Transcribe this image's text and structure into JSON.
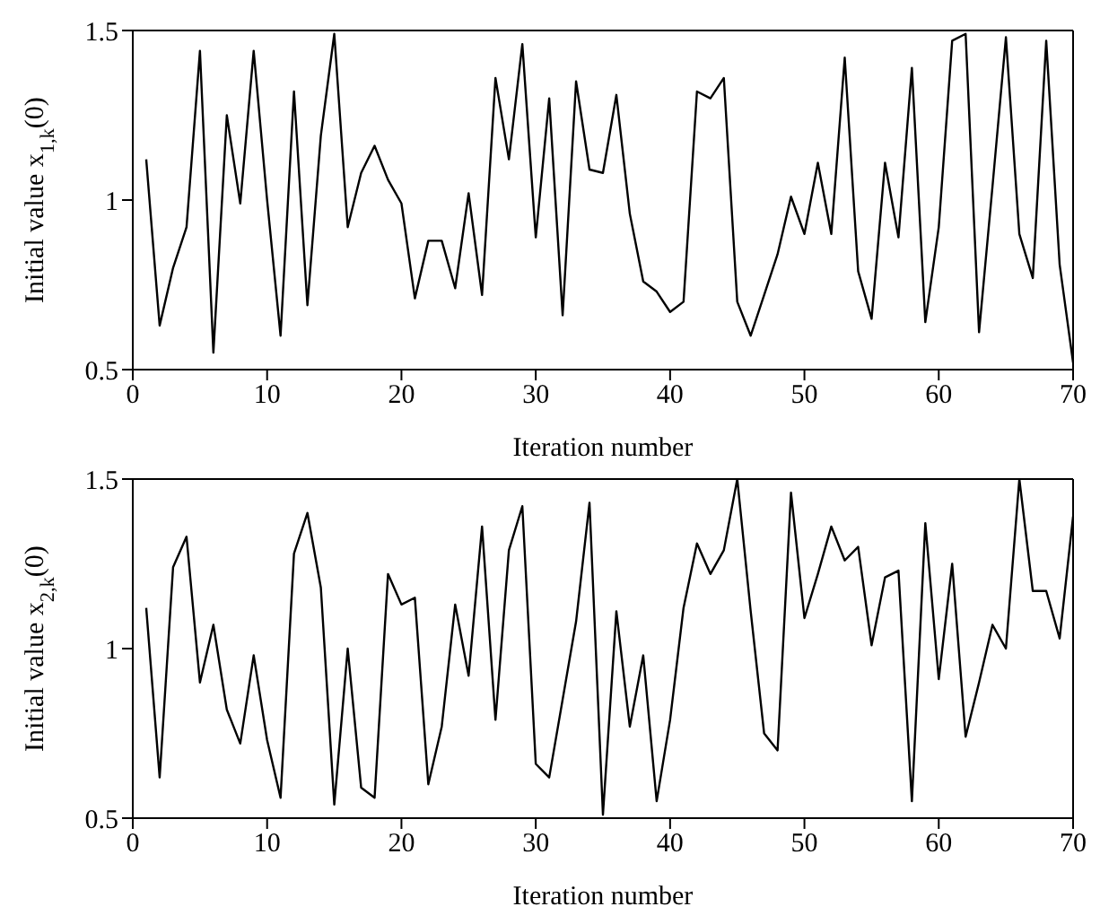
{
  "chart_data": [
    {
      "type": "line",
      "xlabel": "Iteration number",
      "ylabel": "Initial value x$_{1,k}$(0)",
      "xlim": [
        0,
        70
      ],
      "xticks": [
        0,
        10,
        20,
        30,
        40,
        50,
        60,
        70
      ],
      "ylim": [
        0.5,
        1.5
      ],
      "yticks": [
        0.5,
        1,
        1.5
      ],
      "marker": "none",
      "line_style": "solid",
      "x": [
        1,
        2,
        3,
        4,
        5,
        6,
        7,
        8,
        9,
        10,
        11,
        12,
        13,
        14,
        15,
        16,
        17,
        18,
        19,
        20,
        21,
        22,
        23,
        24,
        25,
        26,
        27,
        28,
        29,
        30,
        31,
        32,
        33,
        34,
        35,
        36,
        37,
        38,
        39,
        40,
        41,
        42,
        43,
        44,
        45,
        46,
        47,
        48,
        49,
        50,
        51,
        52,
        53,
        54,
        55,
        56,
        57,
        58,
        59,
        60,
        61,
        62,
        63,
        64,
        65,
        66,
        67,
        68,
        69,
        70
      ],
      "series": [
        {
          "color": "#000000",
          "values": [
            1.12,
            0.63,
            0.8,
            0.92,
            1.44,
            0.55,
            1.25,
            0.99,
            1.44,
            1.0,
            0.6,
            1.32,
            0.69,
            1.19,
            1.49,
            0.92,
            1.08,
            1.16,
            1.06,
            0.99,
            0.71,
            0.88,
            0.88,
            0.74,
            1.02,
            0.72,
            1.36,
            1.12,
            1.46,
            0.89,
            1.3,
            0.66,
            1.35,
            1.09,
            1.08,
            1.31,
            0.96,
            0.76,
            0.73,
            0.67,
            0.7,
            1.32,
            1.3,
            1.36,
            0.7,
            0.6,
            0.72,
            0.84,
            1.01,
            0.9,
            1.11,
            0.9,
            1.42,
            0.79,
            0.65,
            1.11,
            0.89,
            1.39,
            0.64,
            0.92,
            1.47,
            1.49,
            0.61,
            1.04,
            1.48,
            0.9,
            0.77,
            1.47,
            0.81,
            0.52
          ]
        }
      ]
    },
    {
      "type": "line",
      "xlabel": "Iteration number",
      "ylabel": "Initial value x$_{2,k}$(0)",
      "xlim": [
        0,
        70
      ],
      "xticks": [
        0,
        10,
        20,
        30,
        40,
        50,
        60,
        70
      ],
      "ylim": [
        0.5,
        1.5
      ],
      "yticks": [
        0.5,
        1,
        1.5
      ],
      "marker": "none",
      "line_style": "solid",
      "x": [
        1,
        2,
        3,
        4,
        5,
        6,
        7,
        8,
        9,
        10,
        11,
        12,
        13,
        14,
        15,
        16,
        17,
        18,
        19,
        20,
        21,
        22,
        23,
        24,
        25,
        26,
        27,
        28,
        29,
        30,
        31,
        32,
        33,
        34,
        35,
        36,
        37,
        38,
        39,
        40,
        41,
        42,
        43,
        44,
        45,
        46,
        47,
        48,
        49,
        50,
        51,
        52,
        53,
        54,
        55,
        56,
        57,
        58,
        59,
        60,
        61,
        62,
        63,
        64,
        65,
        66,
        67,
        68,
        69,
        70
      ],
      "series": [
        {
          "color": "#000000",
          "values": [
            1.12,
            0.62,
            1.24,
            1.33,
            0.9,
            1.07,
            0.82,
            0.72,
            0.98,
            0.73,
            0.56,
            1.28,
            1.4,
            1.18,
            0.54,
            1.0,
            0.59,
            0.56,
            1.22,
            1.13,
            1.15,
            0.6,
            0.77,
            1.13,
            0.92,
            1.36,
            0.79,
            1.29,
            1.42,
            0.66,
            0.62,
            0.85,
            1.08,
            1.43,
            0.51,
            1.11,
            0.77,
            0.98,
            0.55,
            0.79,
            1.12,
            1.31,
            1.22,
            1.29,
            1.5,
            1.11,
            0.75,
            0.7,
            1.46,
            1.09,
            1.22,
            1.36,
            1.26,
            1.3,
            1.01,
            1.21,
            1.23,
            0.55,
            1.37,
            0.91,
            1.25,
            0.74,
            0.9,
            1.07,
            1.0,
            1.5,
            1.17,
            1.17,
            1.03,
            1.39
          ]
        }
      ]
    }
  ]
}
